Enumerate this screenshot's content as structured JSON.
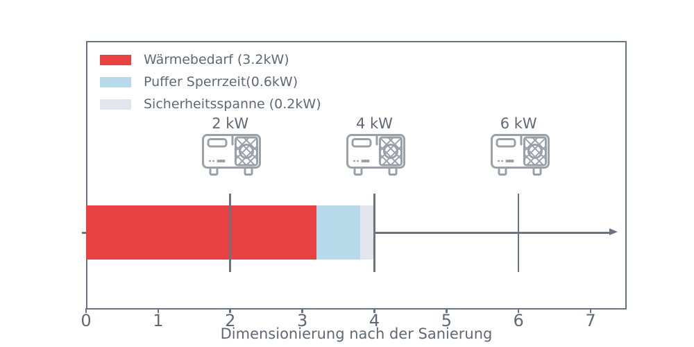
{
  "colors": {
    "axis": "#6a7380",
    "text": "#5f6874",
    "icon": "#9aa0a8",
    "waermebedarf_red": "#e84142",
    "puffer_blue": "#b8d9ea",
    "sicherheit_gray": "#e3e5ec"
  },
  "chart_data": {
    "type": "bar",
    "orientation": "horizontal",
    "stacked": true,
    "title": "",
    "xlabel": "Dimensionierung nach der Sanierung",
    "ylabel": "",
    "xlim": [
      0,
      7.5
    ],
    "xticks": [
      0,
      1,
      2,
      3,
      4,
      5,
      6,
      7
    ],
    "grid": false,
    "legend_position": "upper left",
    "series": [
      {
        "key": "waermebedarf",
        "name": "Wärmebedarf (3.2kW)",
        "value": 3.2,
        "color": "#e84142"
      },
      {
        "key": "puffer-sperrzeit",
        "name": "Puffer Sperrzeit(0.6kW)",
        "value": 0.6,
        "color": "#b8d9ea"
      },
      {
        "key": "sicherheitsspanne",
        "name": "Sicherheitsspanne (0.2kW)",
        "value": 0.2,
        "color": "#e3e5ec"
      }
    ],
    "total_kw": 4.0,
    "annotations": [
      {
        "key": "2kw",
        "label": "2 kW",
        "x": 2,
        "icon": "heat-pump-icon"
      },
      {
        "key": "4kw",
        "label": "4 kW",
        "x": 4,
        "icon": "heat-pump-icon"
      },
      {
        "key": "6kw",
        "label": "6 kW",
        "x": 6,
        "icon": "heat-pump-icon"
      }
    ],
    "axis_arrow": true
  }
}
